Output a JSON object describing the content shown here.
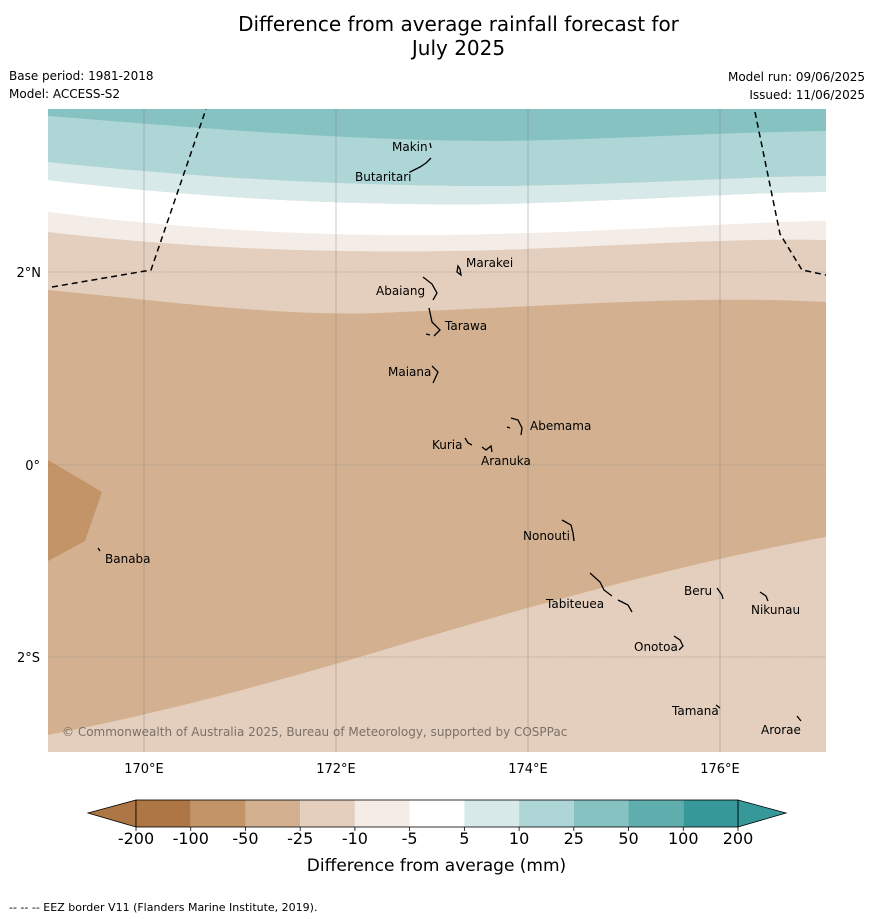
{
  "title_line1": "Difference from average rainfall forecast for",
  "title_line2": "July 2025",
  "base_period": "Base period: 1981-2018",
  "model": "Model: ACCESS-S2",
  "model_run": "Model run: 09/06/2025",
  "issued": "Issued: 11/06/2025",
  "copyright": "© Commonwealth of Australia 2025, Bureau of Meteorology, supported by COSPPac",
  "eez_note": "--  --  -- EEZ border V11 (Flanders Marine Institute, 2019).",
  "colorbar": {
    "label": "Difference from average (mm)",
    "ticks": [
      "-200",
      "-100",
      "-50",
      "-25",
      "-10",
      "-5",
      "5",
      "10",
      "25",
      "50",
      "100",
      "200"
    ],
    "colors": [
      "#ae7644",
      "#c29467",
      "#d3b190",
      "#e4cfbe",
      "#f4ede7",
      "#ffffff",
      "#d7eae9",
      "#aed6d6",
      "#86c2c2",
      "#5fadad",
      "#369898"
    ]
  },
  "axes": {
    "lon_ticks": [
      "170°E",
      "172°E",
      "174°E",
      "176°E"
    ],
    "lat_ticks": [
      "2°N",
      "0°",
      "2°S"
    ]
  },
  "places": [
    {
      "name": "Makin"
    },
    {
      "name": "Butaritari"
    },
    {
      "name": "Marakei"
    },
    {
      "name": "Abaiang"
    },
    {
      "name": "Tarawa"
    },
    {
      "name": "Maiana"
    },
    {
      "name": "Abemama"
    },
    {
      "name": "Kuria"
    },
    {
      "name": "Aranuka"
    },
    {
      "name": "Nonouti"
    },
    {
      "name": "Banaba"
    },
    {
      "name": "Beru"
    },
    {
      "name": "Tabiteuea"
    },
    {
      "name": "Nikunau"
    },
    {
      "name": "Onotoa"
    },
    {
      "name": "Tamana"
    },
    {
      "name": "Arorae"
    }
  ]
}
